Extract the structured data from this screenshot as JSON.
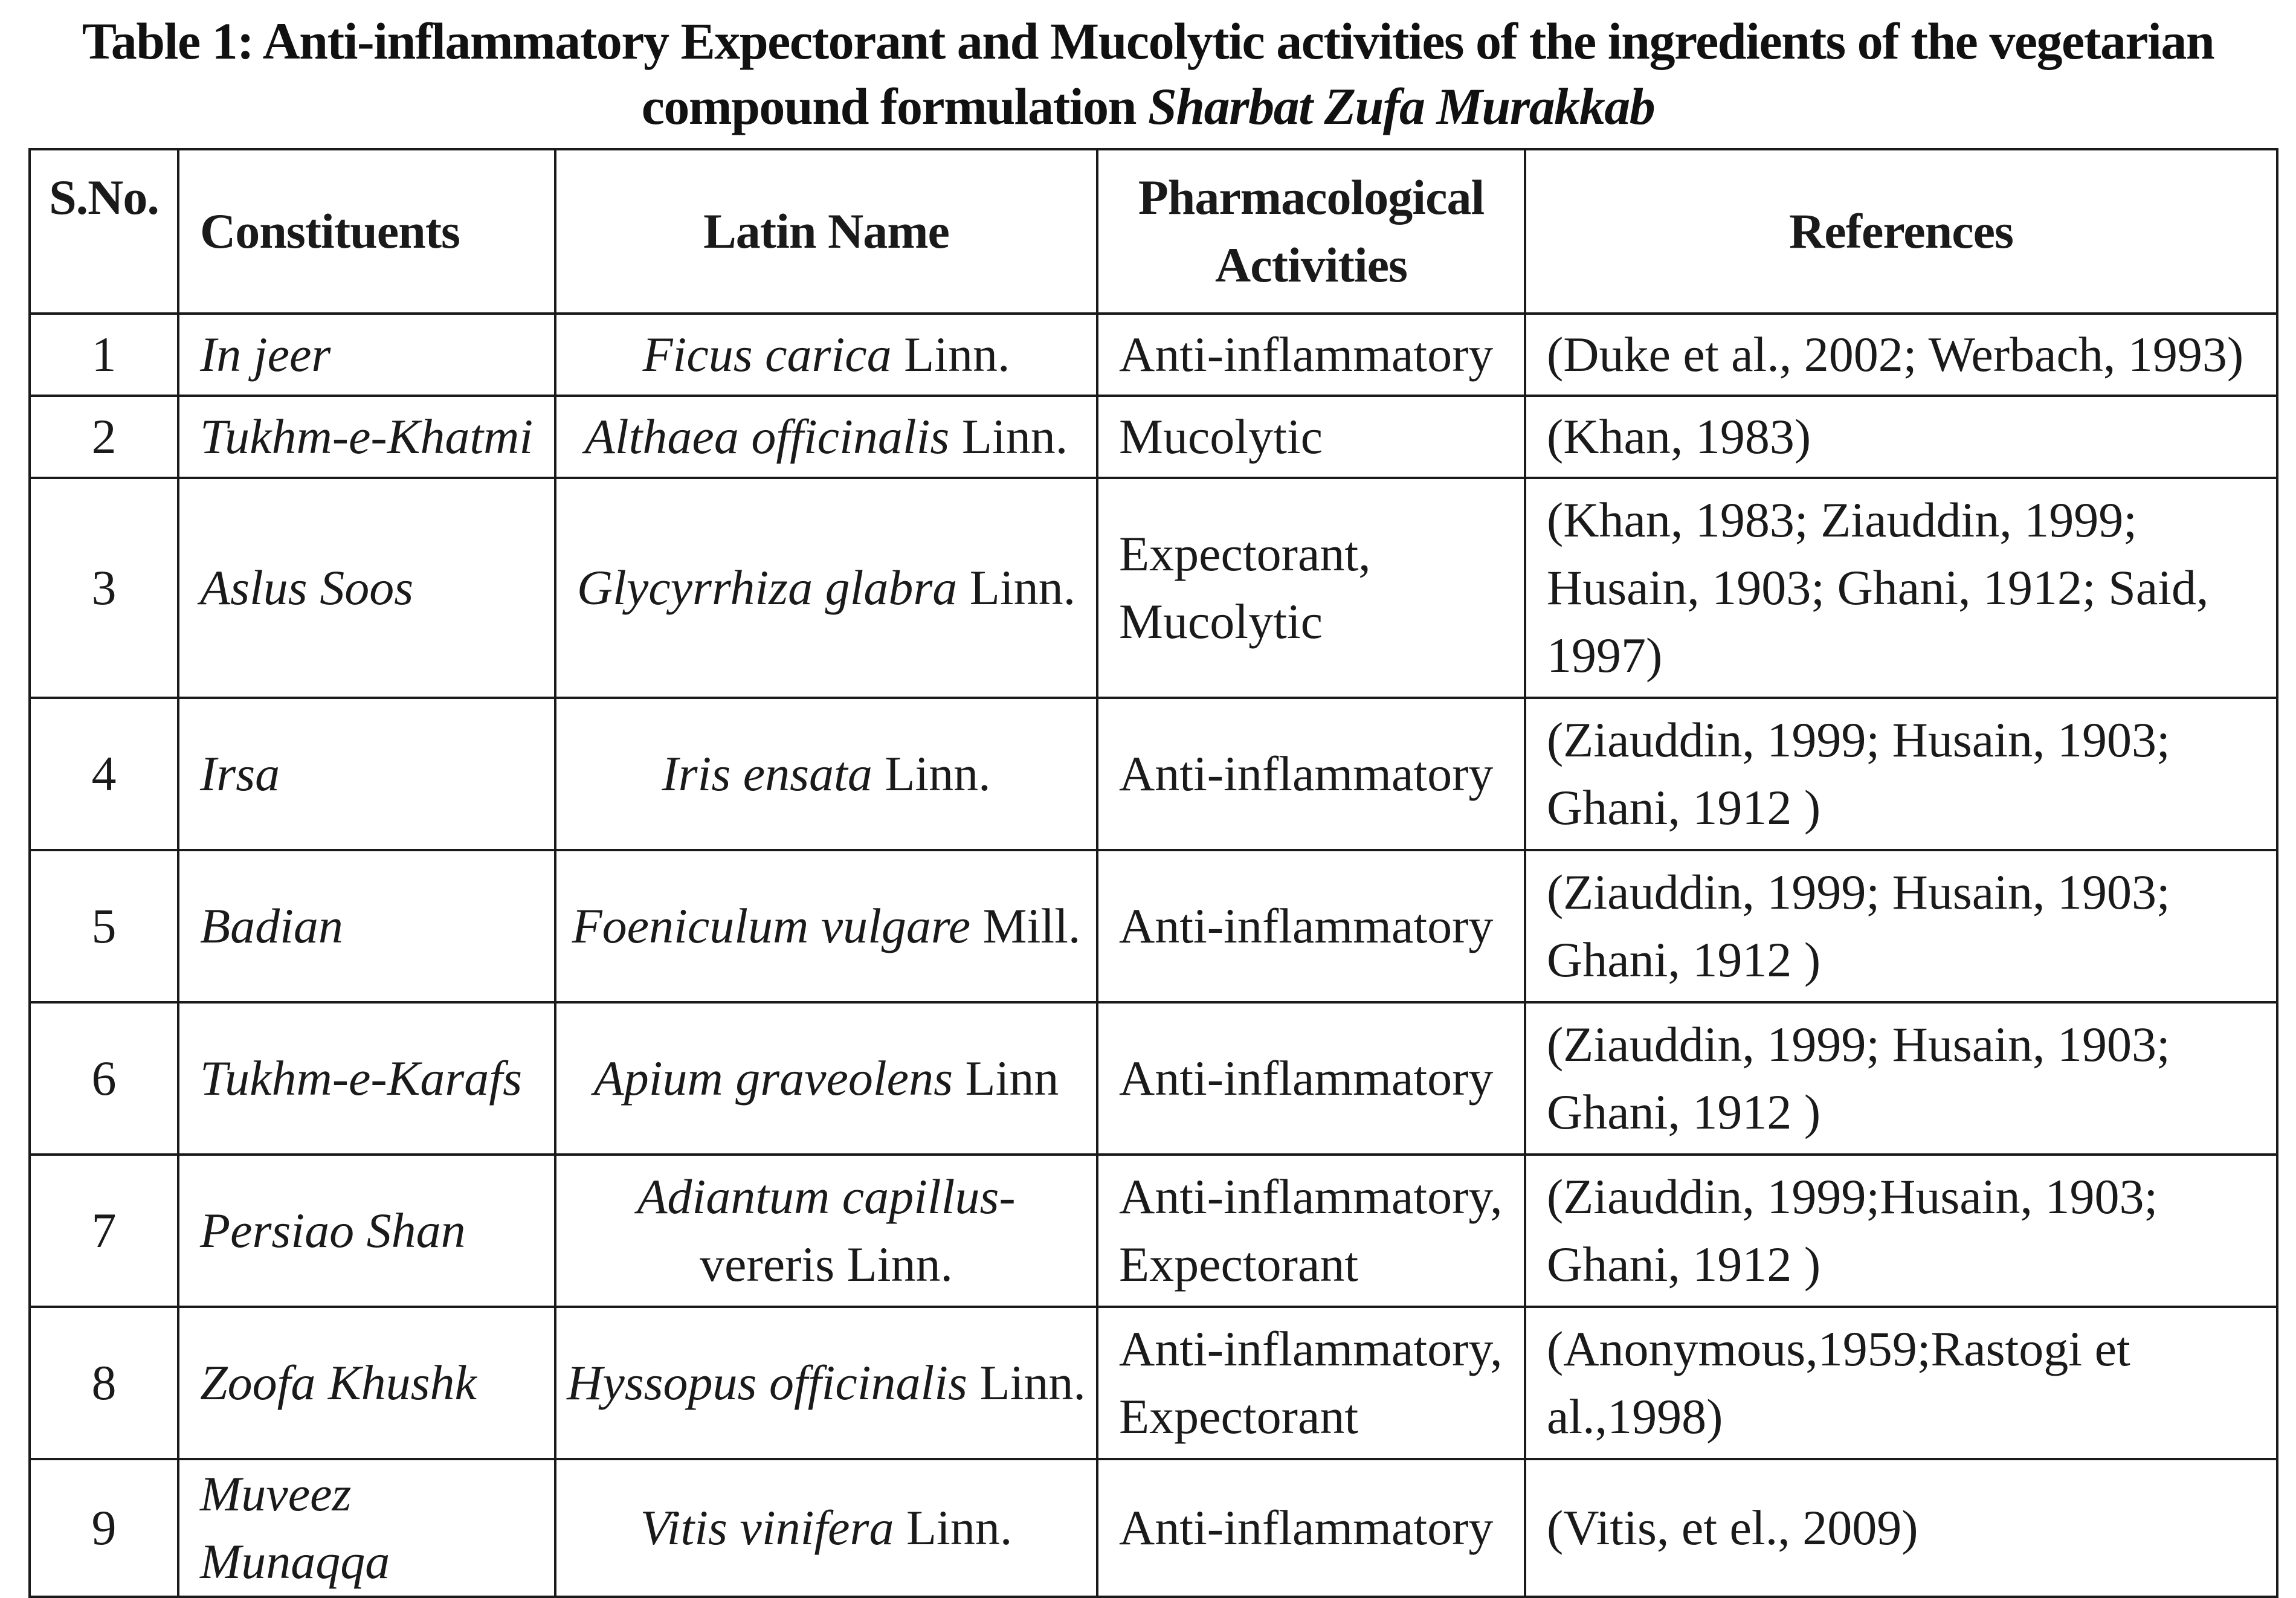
{
  "caption": {
    "line1": "Table 1: Anti-inflammatory Expectorant and Mucolytic activities of the ingredients of the vegetarian",
    "line2_plain": "compound formulation ",
    "line2_italic": "Sharbat Zufa Murakkab"
  },
  "table": {
    "headers": {
      "sno": "S.No.",
      "constituents": "Constituents",
      "latin": "Latin Name",
      "pharm": "Pharmacological Activities",
      "refs": "References"
    },
    "rows": [
      {
        "sno": "1",
        "constituent": "In jeer",
        "latin_italic": "Ficus carica",
        "latin_author": " Linn.",
        "activity": "Anti-inflammatory",
        "references": "(Duke et al., 2002; Werbach, 1993)"
      },
      {
        "sno": "2",
        "constituent": "Tukhm-e-Khatmi",
        "latin_italic": "Althaea officinalis",
        "latin_author": " Linn.",
        "activity": "Mucolytic",
        "references": "(Khan, 1983)"
      },
      {
        "sno": "3",
        "constituent": "Aslus Soos",
        "latin_italic": "Glycyrrhiza glabra",
        "latin_author": " Linn.",
        "activity": "Expectorant, Mucolytic",
        "references": "(Khan, 1983; Ziauddin, 1999; Husain, 1903; Ghani, 1912; Said, 1997)"
      },
      {
        "sno": "4",
        "constituent": "Irsa",
        "latin_italic": "Iris ensata",
        "latin_author": " Linn.",
        "activity": "Anti-inflammatory",
        "references": "(Ziauddin, 1999; Husain, 1903; Ghani, 1912 )"
      },
      {
        "sno": "5",
        "constituent": "Badian",
        "latin_italic": "Foeniculum vulgare",
        "latin_author": " Mill.",
        "activity": "Anti-inflammatory",
        "references": "(Ziauddin, 1999; Husain, 1903; Ghani, 1912 )"
      },
      {
        "sno": "6",
        "constituent": "Tukhm-e-Karafs",
        "latin_italic": "Apium graveolens",
        "latin_author": " Linn",
        "activity": "Anti-inflammatory",
        "references": "(Ziauddin, 1999; Husain, 1903; Ghani, 1912 )"
      },
      {
        "sno": "7",
        "constituent": "Persiao Shan",
        "latin_italic": "Adiantum capillus-",
        "latin_author": "vereris Linn.",
        "activity": "Anti-inflammatory, Expectorant",
        "references": "(Ziauddin, 1999;Husain, 1903; Ghani, 1912 )"
      },
      {
        "sno": "8",
        "constituent": "Zoofa Khushk",
        "latin_italic": "Hyssopus officinalis",
        "latin_author": " Linn.",
        "activity": "Anti-inflammatory, Expectorant",
        "references": "(Anonymous,1959;Rastogi et al.,1998)"
      },
      {
        "sno": "9",
        "constituent": "Muveez Munaqqa",
        "latin_italic": "Vitis vinifera",
        "latin_author": " Linn.",
        "activity": "Anti-inflammatory",
        "references": "(Vitis, et el., 2009)"
      }
    ]
  }
}
